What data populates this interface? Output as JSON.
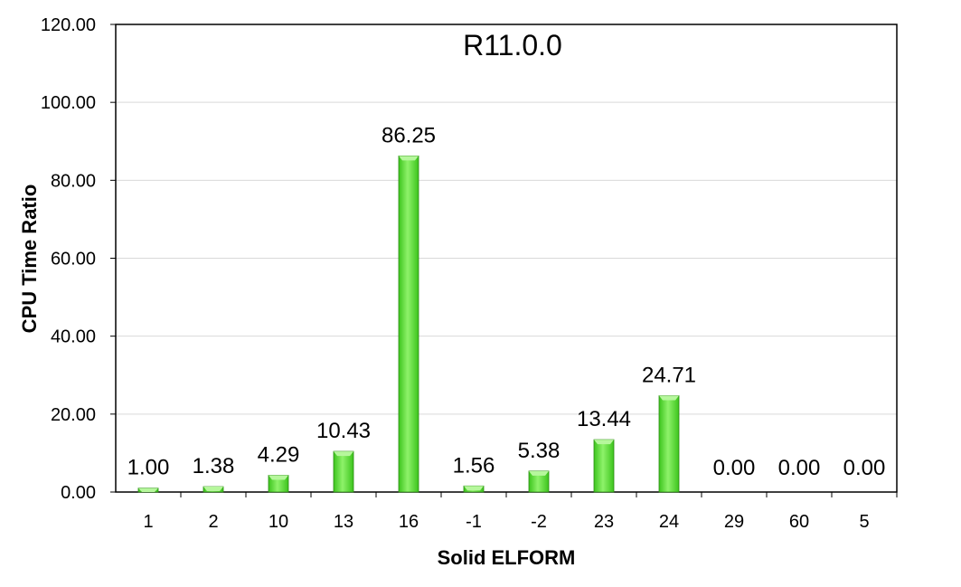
{
  "chart_data": {
    "type": "bar",
    "title": "R11.0.0",
    "xlabel": "Solid ELFORM",
    "ylabel": "CPU Time Ratio",
    "categories": [
      "1",
      "2",
      "10",
      "13",
      "16",
      "-1",
      "-2",
      "23",
      "24",
      "29",
      "60",
      "5"
    ],
    "values": [
      1.0,
      1.38,
      4.29,
      10.43,
      86.25,
      1.56,
      5.38,
      13.44,
      24.71,
      0.0,
      0.0,
      0.0
    ],
    "data_labels": [
      "1.00",
      "1.38",
      "4.29",
      "10.43",
      "86.25",
      "1.56",
      "5.38",
      "13.44",
      "24.71",
      "0.00",
      "0.00",
      "0.00"
    ],
    "yticks": [
      "0.00",
      "20.00",
      "40.00",
      "60.00",
      "80.00",
      "100.00",
      "120.00"
    ],
    "ylim": [
      0,
      120
    ],
    "grid": true,
    "legend": "none",
    "bar_color": "#5fe63a",
    "bar_edge_color": "#2a8a12"
  }
}
